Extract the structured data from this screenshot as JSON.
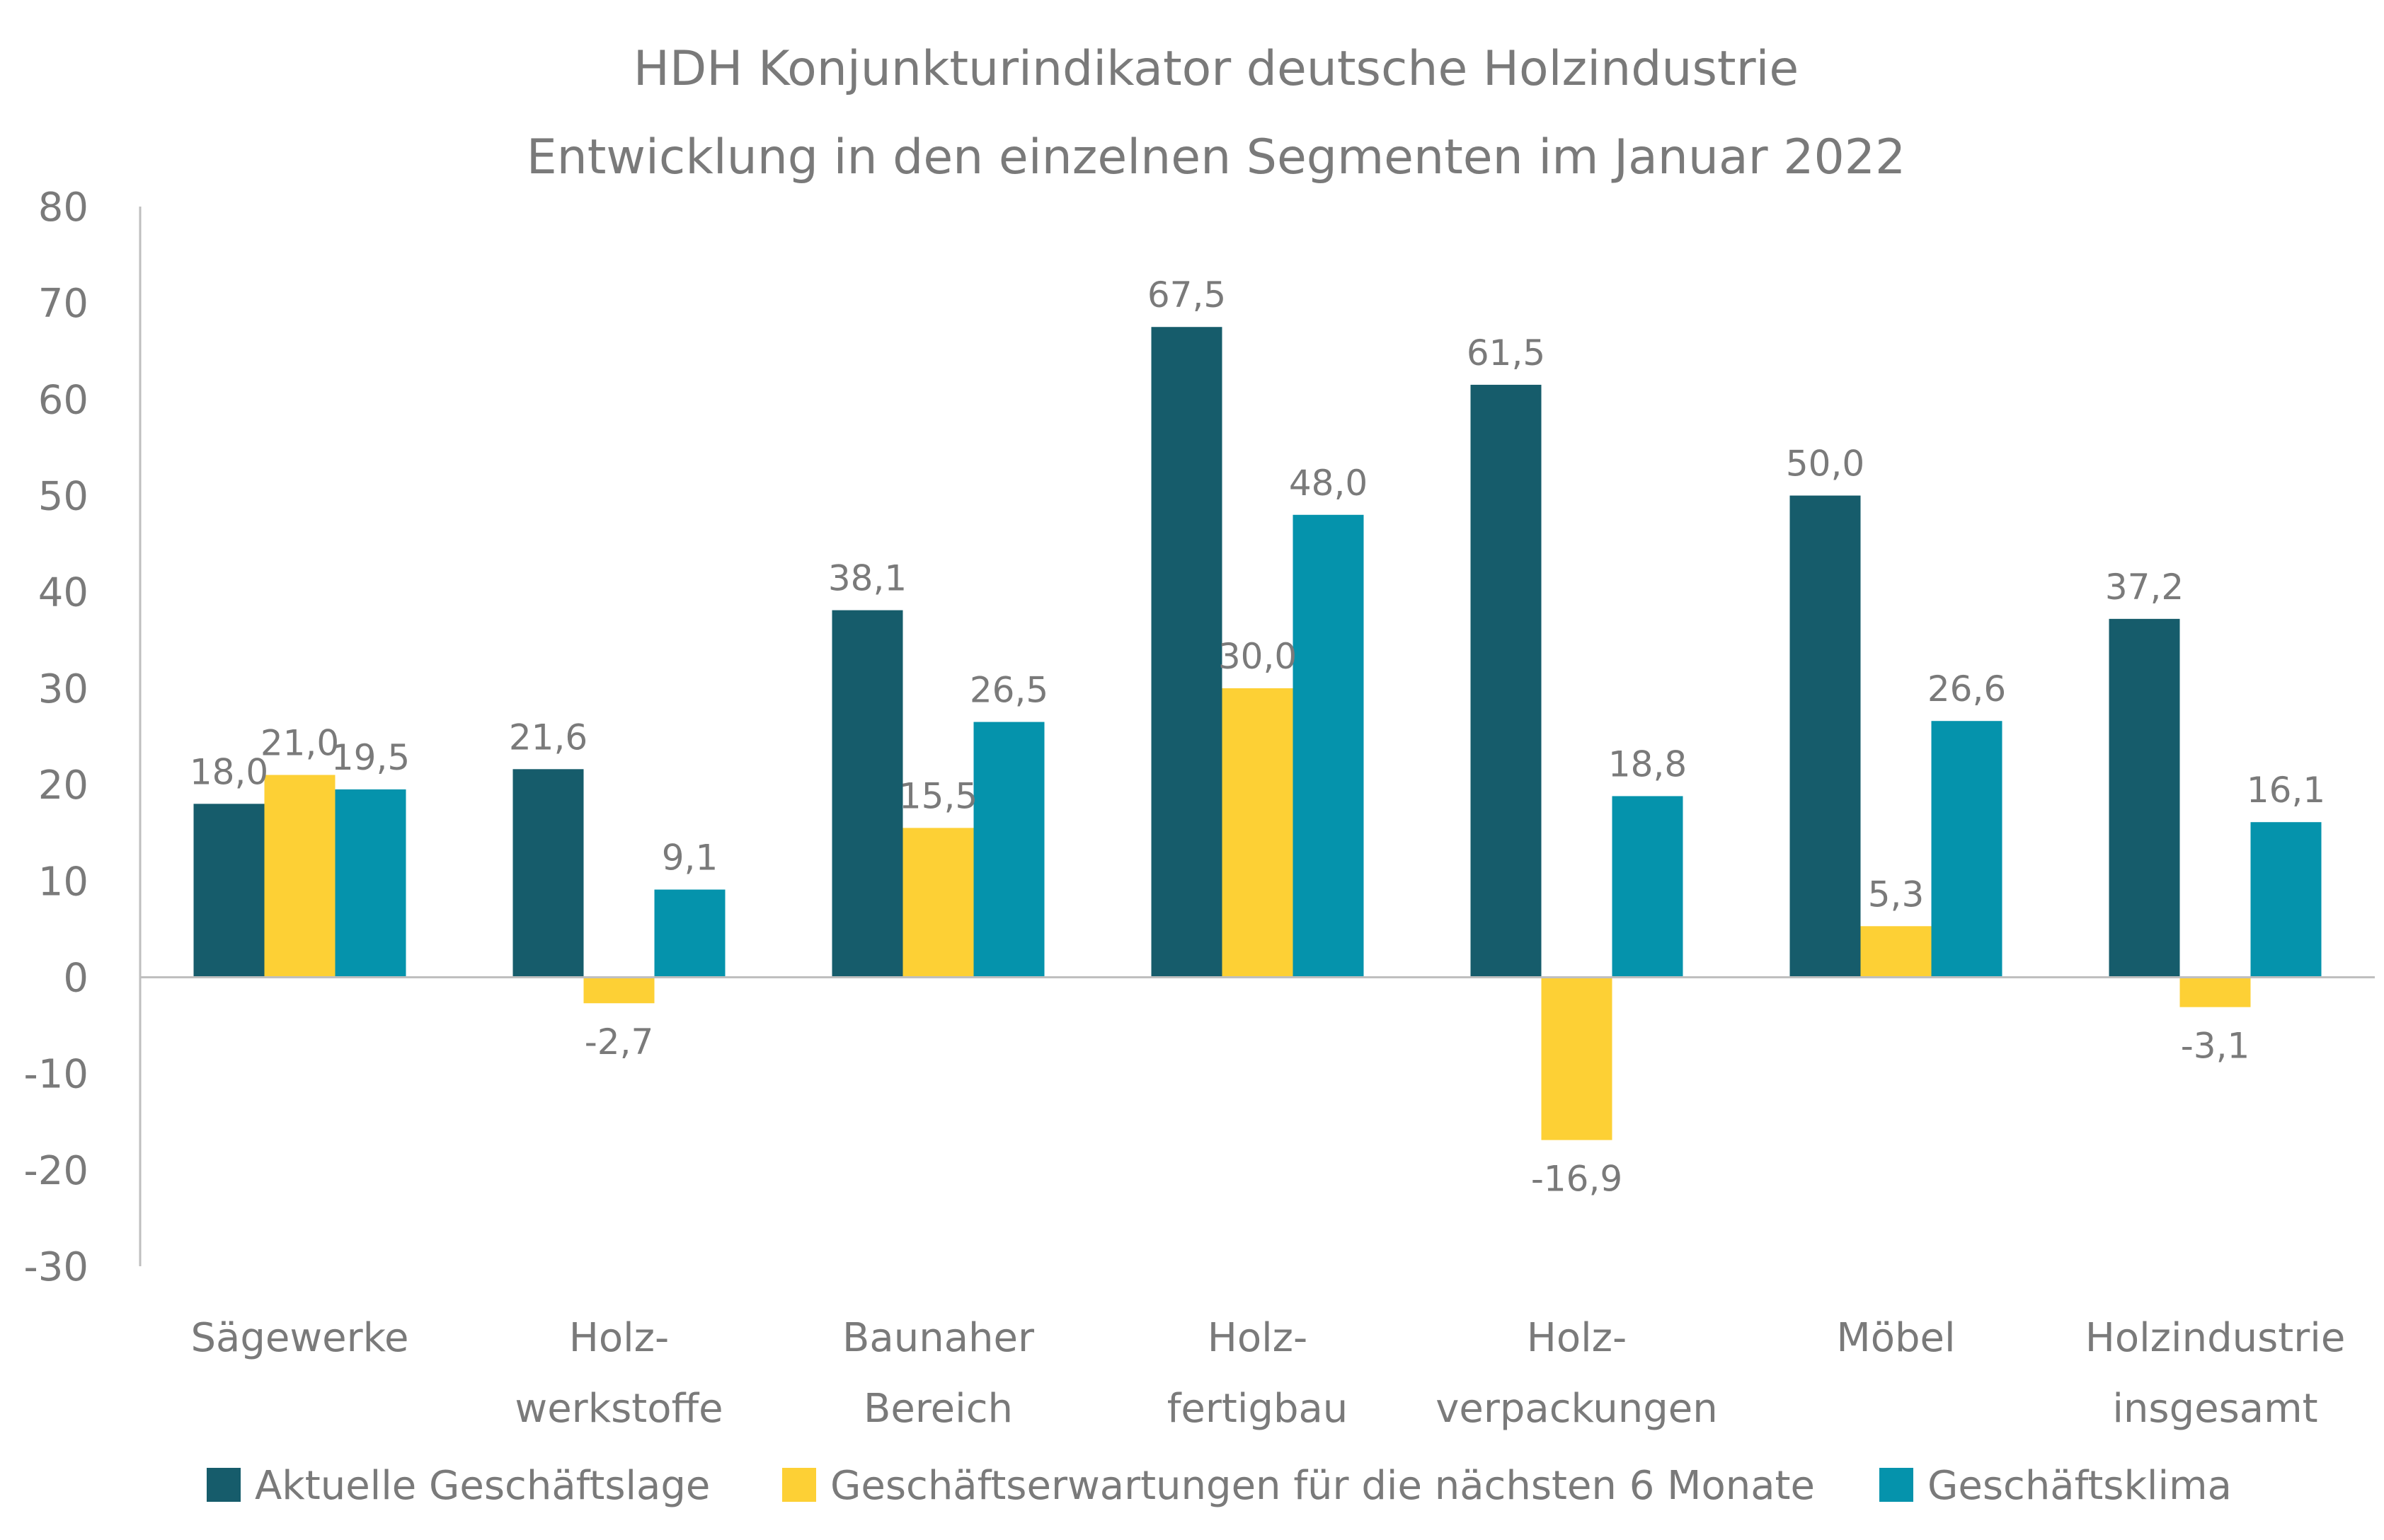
{
  "chart_data": {
    "type": "bar",
    "title": "HDH Konjunkturindikator deutsche Holzindustrie",
    "subtitle": "Entwicklung in den einzelnen Segmenten im Januar 2022",
    "categories": [
      [
        "Sägewerke"
      ],
      [
        "Holz-",
        "werkstoffe"
      ],
      [
        "Baunaher",
        "Bereich"
      ],
      [
        "Holz-",
        "fertigbau"
      ],
      [
        "Holz-",
        "verpackungen"
      ],
      [
        "Möbel"
      ],
      [
        "Holzindustrie",
        "insgesamt"
      ]
    ],
    "series": [
      {
        "name": "Aktuelle Geschäftslage",
        "color": "#165c6b",
        "values": [
          18.0,
          21.6,
          38.1,
          67.5,
          61.5,
          50.0,
          37.2
        ],
        "labels": [
          "18,0",
          "21,6",
          "38,1",
          "67,5",
          "61,5",
          "50,0",
          "37,2"
        ]
      },
      {
        "name": "Geschäftserwartungen für die nächsten 6 Monate",
        "color": "#fdd035",
        "values": [
          21.0,
          -2.7,
          15.5,
          30.0,
          -16.9,
          5.3,
          -3.1
        ],
        "labels": [
          "21,0",
          "-2,7",
          "15,5",
          "30,0",
          "-16,9",
          "5,3",
          "-3,1"
        ]
      },
      {
        "name": "Geschäftsklima",
        "color": "#0593ac",
        "values": [
          19.5,
          9.1,
          26.5,
          48.0,
          18.8,
          26.6,
          16.1
        ],
        "labels": [
          "19,5",
          "9,1",
          "26,5",
          "48,0",
          "18,8",
          "26,6",
          "16,1"
        ]
      }
    ],
    "yticks": [
      80,
      70,
      60,
      50,
      40,
      30,
      20,
      10,
      0,
      -10,
      -20,
      -30
    ],
    "ylim": [
      -30,
      80
    ],
    "grid": false,
    "legend": "bottom"
  }
}
